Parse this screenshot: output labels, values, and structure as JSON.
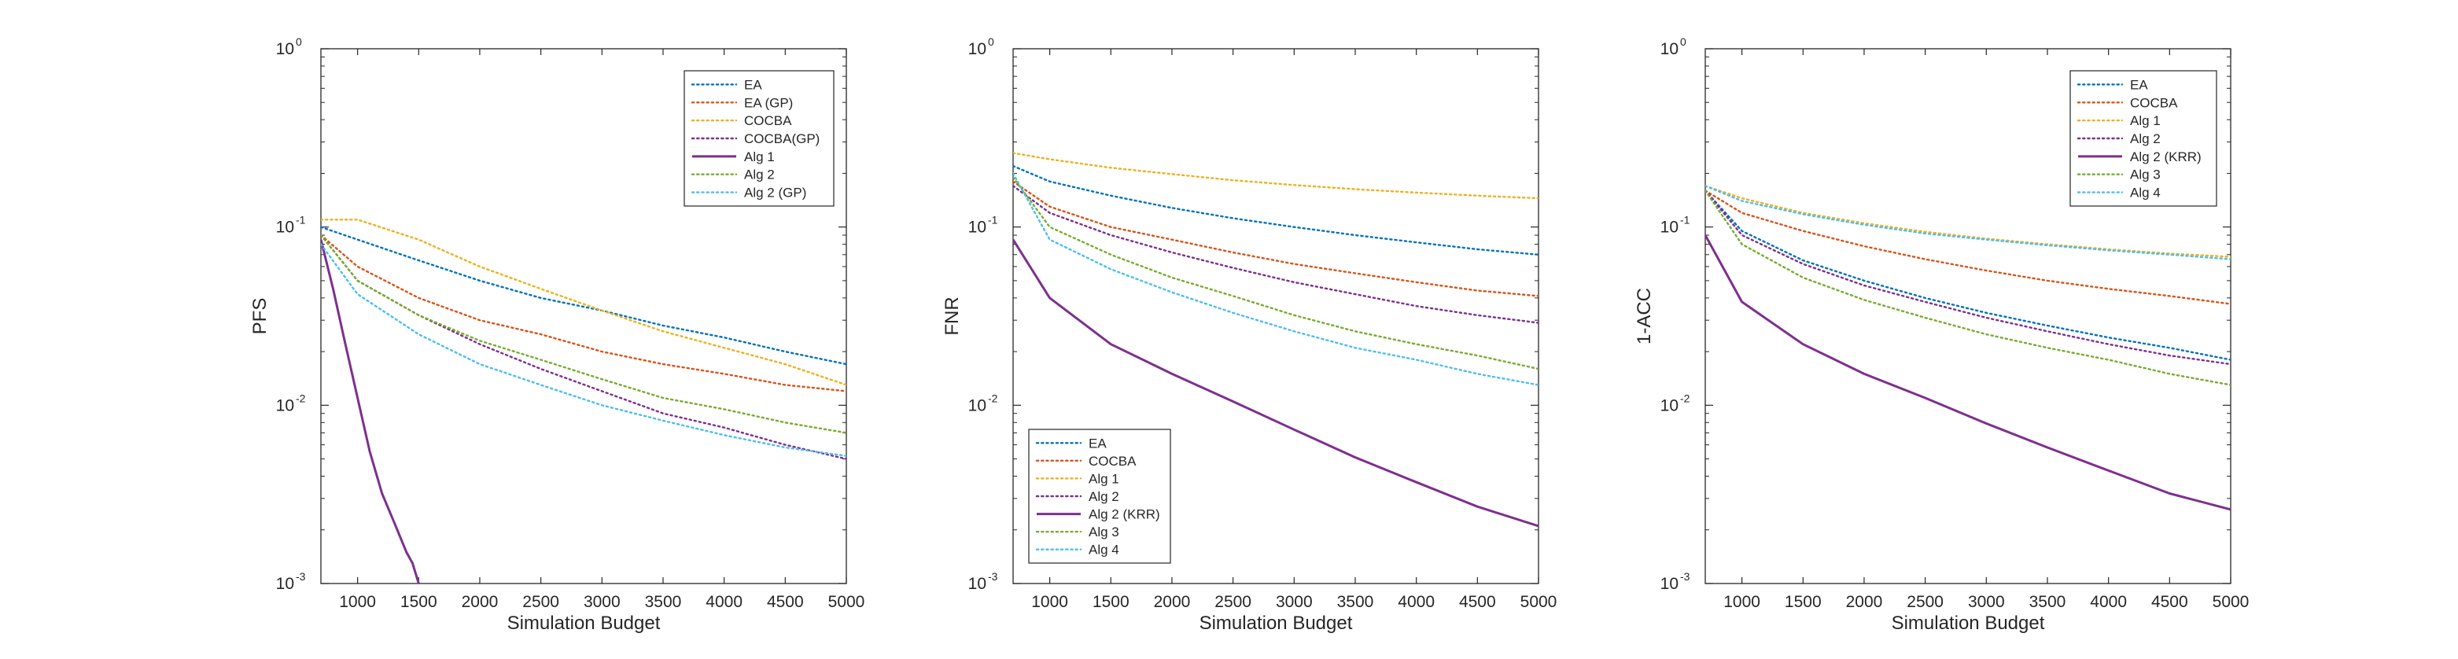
{
  "colors": {
    "blue": "#0072BD",
    "red": "#D95319",
    "yellow": "#EDB120",
    "purple": "#7E2F8E",
    "green": "#77AC30",
    "cyan": "#4DBEEE",
    "axis": "#262626"
  },
  "chart_data": [
    {
      "type": "line",
      "title": "",
      "xlabel": "Simulation Budget",
      "ylabel": "PFS",
      "xlim": [
        700,
        5000
      ],
      "ylim": [
        0.001,
        1
      ],
      "yscale": "log",
      "xticks": [
        "1000",
        "1500",
        "2000",
        "2500",
        "3000",
        "3500",
        "4000",
        "4500",
        "5000"
      ],
      "yticks": [
        {
          "base": "10",
          "exp": "-3"
        },
        {
          "base": "10",
          "exp": "-2"
        },
        {
          "base": "10",
          "exp": "-1"
        },
        {
          "base": "10",
          "exp": "0"
        }
      ],
      "legend_position": "top-right",
      "series": [
        {
          "name": "EA",
          "color": "blue",
          "style": "dotted",
          "x": [
            700,
            1000,
            1500,
            2000,
            2500,
            3000,
            3500,
            4000,
            4500,
            5000
          ],
          "values": [
            0.1,
            0.085,
            0.065,
            0.05,
            0.04,
            0.034,
            0.028,
            0.024,
            0.02,
            0.017
          ]
        },
        {
          "name": "EA (GP)",
          "color": "red",
          "style": "dotted",
          "x": [
            700,
            1000,
            1500,
            2000,
            2500,
            3000,
            3500,
            4000,
            4500,
            5000
          ],
          "values": [
            0.09,
            0.06,
            0.04,
            0.03,
            0.025,
            0.02,
            0.017,
            0.015,
            0.013,
            0.012
          ]
        },
        {
          "name": "COCBA",
          "color": "yellow",
          "style": "dotted",
          "x": [
            700,
            1000,
            1500,
            2000,
            2500,
            3000,
            3500,
            4000,
            4500,
            5000
          ],
          "values": [
            0.11,
            0.11,
            0.085,
            0.06,
            0.045,
            0.034,
            0.026,
            0.021,
            0.017,
            0.013
          ]
        },
        {
          "name": "COCBA(GP)",
          "color": "purple",
          "style": "dotted",
          "x": [
            700,
            1000,
            1500,
            2000,
            2500,
            3000,
            3500,
            4000,
            4500,
            5000
          ],
          "values": [
            0.09,
            0.05,
            0.032,
            0.022,
            0.016,
            0.012,
            0.009,
            0.0075,
            0.006,
            0.005
          ]
        },
        {
          "name": "Alg 1",
          "color": "purple",
          "style": "solid",
          "x": [
            700,
            800,
            900,
            1000,
            1100,
            1200,
            1300,
            1400,
            1450,
            1500
          ],
          "values": [
            0.085,
            0.045,
            0.022,
            0.011,
            0.0055,
            0.0032,
            0.0022,
            0.0015,
            0.0013,
            0.001
          ]
        },
        {
          "name": "Alg 2",
          "color": "green",
          "style": "dotted",
          "x": [
            700,
            1000,
            1500,
            2000,
            2500,
            3000,
            3500,
            4000,
            4500,
            5000
          ],
          "values": [
            0.09,
            0.05,
            0.032,
            0.023,
            0.018,
            0.014,
            0.011,
            0.0095,
            0.008,
            0.007
          ]
        },
        {
          "name": "Alg 2 (GP)",
          "color": "cyan",
          "style": "dotted",
          "x": [
            700,
            1000,
            1500,
            2000,
            2500,
            3000,
            3500,
            4000,
            4500,
            5000
          ],
          "values": [
            0.08,
            0.042,
            0.025,
            0.017,
            0.013,
            0.01,
            0.0082,
            0.0068,
            0.0058,
            0.0052
          ]
        }
      ]
    },
    {
      "type": "line",
      "title": "",
      "xlabel": "Simulation Budget",
      "ylabel": "FNR",
      "xlim": [
        700,
        5000
      ],
      "ylim": [
        0.001,
        1
      ],
      "yscale": "log",
      "xticks": [
        "1000",
        "1500",
        "2000",
        "2500",
        "3000",
        "3500",
        "4000",
        "4500",
        "5000"
      ],
      "yticks": [
        {
          "base": "10",
          "exp": "-3"
        },
        {
          "base": "10",
          "exp": "-2"
        },
        {
          "base": "10",
          "exp": "-1"
        },
        {
          "base": "10",
          "exp": "0"
        }
      ],
      "legend_position": "bottom-left",
      "series": [
        {
          "name": "EA",
          "color": "blue",
          "style": "dotted",
          "x": [
            700,
            1000,
            1500,
            2000,
            2500,
            3000,
            3500,
            4000,
            4500,
            5000
          ],
          "values": [
            0.22,
            0.18,
            0.15,
            0.128,
            0.112,
            0.1,
            0.09,
            0.082,
            0.075,
            0.07
          ]
        },
        {
          "name": "COCBA",
          "color": "red",
          "style": "dotted",
          "x": [
            700,
            1000,
            1500,
            2000,
            2500,
            3000,
            3500,
            4000,
            4500,
            5000
          ],
          "values": [
            0.18,
            0.13,
            0.1,
            0.085,
            0.072,
            0.062,
            0.055,
            0.049,
            0.044,
            0.041
          ]
        },
        {
          "name": "Alg 1",
          "color": "yellow",
          "style": "dotted",
          "x": [
            700,
            1000,
            1500,
            2000,
            2500,
            3000,
            3500,
            4000,
            4500,
            5000
          ],
          "values": [
            0.26,
            0.24,
            0.215,
            0.198,
            0.183,
            0.172,
            0.163,
            0.156,
            0.15,
            0.145
          ]
        },
        {
          "name": "Alg 2",
          "color": "purple",
          "style": "dotted",
          "x": [
            700,
            1000,
            1500,
            2000,
            2500,
            3000,
            3500,
            4000,
            4500,
            5000
          ],
          "values": [
            0.17,
            0.12,
            0.09,
            0.072,
            0.059,
            0.049,
            0.042,
            0.036,
            0.032,
            0.029
          ]
        },
        {
          "name": "Alg 2 (KRR)",
          "color": "purple",
          "style": "solid",
          "x": [
            700,
            1000,
            1500,
            2000,
            2500,
            3000,
            3500,
            4000,
            4500,
            5000
          ],
          "values": [
            0.085,
            0.04,
            0.022,
            0.015,
            0.0105,
            0.0073,
            0.0051,
            0.0037,
            0.0027,
            0.0021
          ]
        },
        {
          "name": "Alg 3",
          "color": "green",
          "style": "dotted",
          "x": [
            700,
            1000,
            1500,
            2000,
            2500,
            3000,
            3500,
            4000,
            4500,
            5000
          ],
          "values": [
            0.19,
            0.1,
            0.07,
            0.052,
            0.041,
            0.032,
            0.026,
            0.022,
            0.019,
            0.016
          ]
        },
        {
          "name": "Alg 4",
          "color": "cyan",
          "style": "dotted",
          "x": [
            700,
            1000,
            1500,
            2000,
            2500,
            3000,
            3500,
            4000,
            4500,
            5000
          ],
          "values": [
            0.2,
            0.085,
            0.058,
            0.043,
            0.033,
            0.026,
            0.021,
            0.018,
            0.015,
            0.013
          ]
        }
      ]
    },
    {
      "type": "line",
      "title": "",
      "xlabel": "Simulation Budget",
      "ylabel": "1-ACC",
      "xlim": [
        700,
        5000
      ],
      "ylim": [
        0.001,
        1
      ],
      "yscale": "log",
      "xticks": [
        "1000",
        "1500",
        "2000",
        "2500",
        "3000",
        "3500",
        "4000",
        "4500",
        "5000"
      ],
      "yticks": [
        {
          "base": "10",
          "exp": "-3"
        },
        {
          "base": "10",
          "exp": "-2"
        },
        {
          "base": "10",
          "exp": "-1"
        },
        {
          "base": "10",
          "exp": "0"
        }
      ],
      "legend_position": "top-right",
      "series": [
        {
          "name": "EA",
          "color": "blue",
          "style": "dotted",
          "x": [
            700,
            1000,
            1500,
            2000,
            2500,
            3000,
            3500,
            4000,
            4500,
            5000
          ],
          "values": [
            0.16,
            0.095,
            0.065,
            0.05,
            0.04,
            0.033,
            0.028,
            0.024,
            0.021,
            0.018
          ]
        },
        {
          "name": "COCBA",
          "color": "red",
          "style": "dotted",
          "x": [
            700,
            1000,
            1500,
            2000,
            2500,
            3000,
            3500,
            4000,
            4500,
            5000
          ],
          "values": [
            0.16,
            0.12,
            0.095,
            0.078,
            0.066,
            0.057,
            0.05,
            0.045,
            0.041,
            0.037
          ]
        },
        {
          "name": "Alg 1",
          "color": "yellow",
          "style": "dotted",
          "x": [
            700,
            1000,
            1500,
            2000,
            2500,
            3000,
            3500,
            4000,
            4500,
            5000
          ],
          "values": [
            0.17,
            0.145,
            0.12,
            0.105,
            0.094,
            0.086,
            0.08,
            0.075,
            0.071,
            0.068
          ]
        },
        {
          "name": "Alg 2",
          "color": "purple",
          "style": "dotted",
          "x": [
            700,
            1000,
            1500,
            2000,
            2500,
            3000,
            3500,
            4000,
            4500,
            5000
          ],
          "values": [
            0.16,
            0.09,
            0.062,
            0.047,
            0.038,
            0.031,
            0.026,
            0.022,
            0.019,
            0.017
          ]
        },
        {
          "name": "Alg 2 (KRR)",
          "color": "purple",
          "style": "solid",
          "x": [
            700,
            1000,
            1500,
            2000,
            2500,
            3000,
            3500,
            4000,
            4500,
            5000
          ],
          "values": [
            0.09,
            0.038,
            0.022,
            0.015,
            0.011,
            0.0079,
            0.0058,
            0.0043,
            0.0032,
            0.0026
          ]
        },
        {
          "name": "Alg 3",
          "color": "green",
          "style": "dotted",
          "x": [
            700,
            1000,
            1500,
            2000,
            2500,
            3000,
            3500,
            4000,
            4500,
            5000
          ],
          "values": [
            0.16,
            0.08,
            0.052,
            0.039,
            0.031,
            0.025,
            0.021,
            0.018,
            0.015,
            0.013
          ]
        },
        {
          "name": "Alg 4",
          "color": "cyan",
          "style": "dotted",
          "x": [
            700,
            1000,
            1500,
            2000,
            2500,
            3000,
            3500,
            4000,
            4500,
            5000
          ],
          "values": [
            0.17,
            0.14,
            0.118,
            0.103,
            0.092,
            0.085,
            0.079,
            0.074,
            0.07,
            0.066
          ]
        }
      ]
    }
  ]
}
